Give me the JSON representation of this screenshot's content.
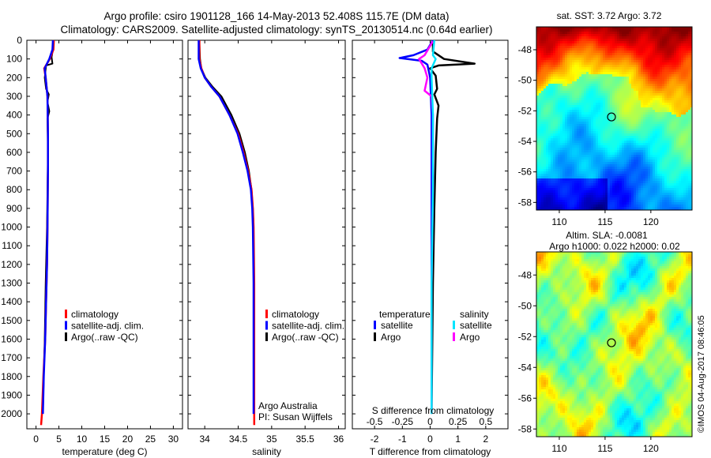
{
  "header": {
    "line1": "Argo profile: csiro 1901128_166 14-May-2013 52.408S 115.7E (DM data)",
    "line2": "Climatology: CARS2009. Satellite-adjusted climatology: synTS_20130514.nc (0.64d earlier)"
  },
  "colors": {
    "climatology": "#ff0000",
    "satellite_adj": "#0000ff",
    "argo": "#000000",
    "t_satellite": "#0000ff",
    "t_argo": "#000000",
    "s_satellite": "#00e5ff",
    "s_argo": "#ff00ff"
  },
  "chart_data": [
    {
      "type": "line",
      "panel": "temperature",
      "xlabel": "temperature (deg C)",
      "ylabel": "",
      "xlim": [
        -2,
        32
      ],
      "ylim": [
        2080,
        0
      ],
      "y_reversed": true,
      "xticks": [
        0,
        5,
        10,
        15,
        20,
        25,
        30
      ],
      "yticks": [
        0,
        100,
        200,
        300,
        400,
        500,
        600,
        700,
        800,
        900,
        1000,
        1100,
        1200,
        1300,
        1400,
        1500,
        1600,
        1700,
        1800,
        1900,
        2000
      ],
      "legend": [
        "climatology",
        "satellite-adj. clim.",
        "Argo(..raw -QC)"
      ],
      "series": [
        {
          "name": "climatology",
          "x": [
            3.9,
            3.8,
            3.0,
            1.8,
            2.1,
            2.5,
            2.6,
            2.6,
            2.5,
            2.4,
            2.2,
            2.0,
            1.6,
            1.3,
            1.1
          ],
          "y": [
            0,
            50,
            100,
            150,
            200,
            300,
            500,
            700,
            1000,
            1200,
            1400,
            1600,
            1800,
            2000,
            2060
          ]
        },
        {
          "name": "satellite-adj. clim.",
          "x": [
            3.7,
            3.6,
            2.9,
            1.9,
            2.1,
            2.5,
            2.6,
            2.6,
            2.5,
            2.4,
            2.2,
            2.0,
            1.7,
            1.5
          ],
          "y": [
            0,
            50,
            100,
            150,
            200,
            300,
            500,
            700,
            1000,
            1200,
            1400,
            1600,
            1800,
            2000
          ]
        },
        {
          "name": "Argo(..raw -QC)",
          "x": [
            3.7,
            3.7,
            3.4,
            3.6,
            2.2,
            1.9,
            2.2,
            2.8,
            2.5,
            2.9,
            2.5,
            2.6,
            2.5,
            2.4,
            2.1,
            1.9,
            1.7,
            1.5
          ],
          "y": [
            5,
            50,
            90,
            125,
            135,
            200,
            260,
            290,
            330,
            380,
            420,
            600,
            800,
            1000,
            1300,
            1600,
            1800,
            1990
          ]
        }
      ]
    },
    {
      "type": "line",
      "panel": "salinity",
      "xlabel": "salinity",
      "ylabel": "",
      "xlim": [
        33.75,
        36.1
      ],
      "ylim": [
        2080,
        0
      ],
      "y_reversed": true,
      "xticks": [
        34,
        34.5,
        35,
        35.5,
        36
      ],
      "legend": [
        "climatology",
        "satellite-adj. clim.",
        "Argo(..raw -QC)"
      ],
      "annotations": [
        "Argo Australia",
        "PI: Susan Wijffels"
      ],
      "series": [
        {
          "name": "climatology",
          "x": [
            33.92,
            33.92,
            33.95,
            34.0,
            34.1,
            34.22,
            34.37,
            34.5,
            34.58,
            34.65,
            34.7,
            34.72,
            34.73,
            34.74,
            34.74,
            34.74
          ],
          "y": [
            0,
            100,
            150,
            200,
            250,
            300,
            400,
            500,
            600,
            700,
            800,
            900,
            1000,
            1300,
            1600,
            2060
          ]
        },
        {
          "name": "satellite-adj. clim.",
          "x": [
            33.91,
            33.91,
            33.94,
            34.0,
            34.1,
            34.22,
            34.37,
            34.49,
            34.57,
            34.64,
            34.69,
            34.71,
            34.72,
            34.73,
            34.73,
            34.73
          ],
          "y": [
            0,
            100,
            150,
            200,
            250,
            300,
            400,
            500,
            600,
            700,
            800,
            900,
            1000,
            1300,
            1600,
            2000
          ]
        },
        {
          "name": "Argo(..raw -QC)",
          "x": [
            33.92,
            33.93,
            33.95,
            34.01,
            34.12,
            34.25,
            34.4,
            34.52,
            34.6,
            34.66,
            34.7,
            34.72,
            34.73,
            34.73,
            34.73
          ],
          "y": [
            5,
            100,
            150,
            200,
            250,
            300,
            400,
            500,
            600,
            700,
            800,
            900,
            1000,
            1300,
            1990
          ]
        }
      ]
    },
    {
      "type": "line",
      "panel": "difference",
      "xlabel": "T difference from climatology",
      "x2label": "S difference from climatology",
      "xlim": [
        -2.8,
        2.8
      ],
      "ylim": [
        2080,
        0
      ],
      "y_reversed": true,
      "xticks": [
        -2,
        -1,
        0,
        1,
        2
      ],
      "x2ticks": [
        "-0.5",
        "-0.25",
        "0",
        "0.25",
        "0.5"
      ],
      "legend_titles": [
        "temperature",
        "salinity"
      ],
      "legend": [
        "satellite",
        "Argo",
        "satellite",
        "Argo"
      ],
      "series": [
        {
          "name": "satellite",
          "group": "temperature",
          "x": [
            0.1,
            -0.1,
            -0.6,
            -1.1,
            -0.3,
            -0.1,
            0.0,
            0.05,
            0.05,
            0.05,
            0.05
          ],
          "y": [
            0,
            50,
            80,
            95,
            110,
            130,
            200,
            400,
            800,
            1300,
            2000
          ]
        },
        {
          "name": "Argo",
          "group": "temperature",
          "x": [
            0.1,
            0.1,
            0.5,
            1.6,
            0.3,
            0.0,
            0.2,
            0.25,
            0.15,
            0.3,
            0.25,
            0.2,
            0.15,
            0.1,
            0.05
          ],
          "y": [
            5,
            60,
            100,
            125,
            135,
            150,
            190,
            260,
            290,
            350,
            420,
            600,
            900,
            1300,
            1990
          ]
        },
        {
          "name": "satellite",
          "group": "salinity",
          "x": [
            0.15,
            0.1,
            0.2,
            0.05,
            0.05,
            0.1,
            0.1,
            0.05,
            0.05
          ],
          "y": [
            0,
            80,
            100,
            150,
            200,
            400,
            800,
            1300,
            2000
          ]
        },
        {
          "name": "Argo",
          "group": "salinity",
          "x": [
            0.1,
            -0.2,
            -0.4,
            -0.2,
            -0.1,
            -0.2,
            0.05,
            0.1,
            0.1,
            0.05,
            0.05
          ],
          "y": [
            5,
            80,
            100,
            150,
            200,
            270,
            300,
            400,
            800,
            1300,
            1990
          ]
        }
      ]
    },
    {
      "type": "heatmap",
      "panel": "sst-map",
      "title": "sat. SST: 3.72 Argo: 3.72",
      "xticks": [
        110,
        115,
        120
      ],
      "yticks": [
        -48,
        -50,
        -52,
        -54,
        -56,
        -58
      ],
      "xlim": [
        107.5,
        124.5
      ],
      "ylim": [
        -58.5,
        -46.5
      ],
      "marker": {
        "x": 115.7,
        "y": -52.4
      }
    },
    {
      "type": "heatmap",
      "panel": "sla-map",
      "title": "Altim. SLA: -0.0081",
      "subtitle": "Argo h1000: 0.022 h2000: 0.02",
      "xticks": [
        110,
        115,
        120
      ],
      "yticks": [
        -48,
        -50,
        -52,
        -54,
        -56,
        -58
      ],
      "xlim": [
        107.5,
        124.5
      ],
      "ylim": [
        -58.5,
        -46.5
      ],
      "marker": {
        "x": 115.7,
        "y": -52.4
      }
    }
  ],
  "watermark": "©IMOS 04-Aug-2017 08:46:05"
}
